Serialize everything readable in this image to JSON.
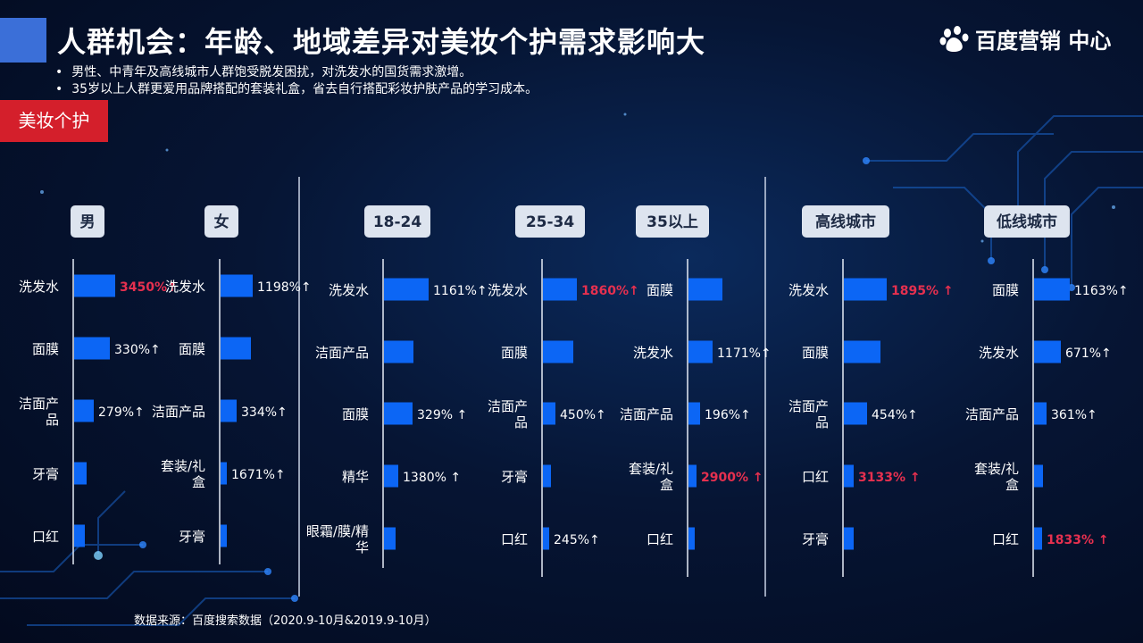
{
  "header": {
    "title": "人群机会：年龄、地域差异对美妆个护需求影响大",
    "logo_text": "百度营销 中心"
  },
  "bullets": [
    "男性、中青年及高线城市人群饱受脱发困扰，对洗发水的国货需求激增。",
    "35岁以上人群更爱用品牌搭配的套装礼盒，省去自行搭配彩妆护肤产品的学习成本。"
  ],
  "category_tag": "美妆个护",
  "source": "数据来源：百度搜索数据（2020.9-10月&2019.9-10月）",
  "colors": {
    "bar": "#0c66f5",
    "highlight": "#e6304f",
    "tag_bg": "#d41f2b",
    "pill_bg": "#dde4ef",
    "pill_text": "#1d2a44"
  },
  "chart_data": [
    {
      "type": "bar",
      "title": "男",
      "categories": [
        "洗发水",
        "面膜",
        "洁面产品",
        "牙膏",
        "口红"
      ],
      "values": [
        3450,
        330,
        279,
        null,
        null
      ],
      "labels": [
        "3450%↑",
        "330%↑",
        "279%↑",
        "",
        ""
      ],
      "highlight": [
        true,
        false,
        false,
        false,
        false
      ],
      "bar_len": [
        46,
        40,
        22,
        14,
        12
      ]
    },
    {
      "type": "bar",
      "title": "女",
      "categories": [
        "洗发水",
        "面膜",
        "洁面产品",
        "套装/礼盒",
        "牙膏"
      ],
      "values": [
        1198,
        null,
        334,
        1671,
        null
      ],
      "labels": [
        "1198%↑",
        "",
        "334%↑",
        "1671%↑",
        ""
      ],
      "highlight": [
        false,
        false,
        false,
        false,
        false
      ],
      "bar_len": [
        36,
        34,
        18,
        7,
        7
      ]
    },
    {
      "type": "bar",
      "title": "18-24",
      "categories": [
        "洗发水",
        "洁面产品",
        "面膜",
        "精华",
        "眼霜/膜/精华"
      ],
      "values": [
        1161,
        null,
        329,
        1380,
        null
      ],
      "labels": [
        "1161%↑",
        "",
        "329% ↑",
        "1380% ↑",
        ""
      ],
      "highlight": [
        false,
        false,
        false,
        false,
        false
      ],
      "bar_len": [
        50,
        33,
        32,
        16,
        13
      ]
    },
    {
      "type": "bar",
      "title": "25-34",
      "categories": [
        "洗发水",
        "面膜",
        "洁面产品",
        "牙膏",
        "口红"
      ],
      "values": [
        1860,
        null,
        450,
        null,
        245
      ],
      "labels": [
        "1860%↑",
        "",
        "450%↑",
        "",
        "245%↑"
      ],
      "highlight": [
        true,
        false,
        false,
        false,
        false
      ],
      "bar_len": [
        38,
        34,
        14,
        9,
        7
      ]
    },
    {
      "type": "bar",
      "title": "35以上",
      "categories": [
        "面膜",
        "洗发水",
        "洁面产品",
        "套装/礼盒",
        "口红"
      ],
      "values": [
        null,
        1171,
        196,
        2900,
        null
      ],
      "labels": [
        "",
        "1171%↑",
        "196%↑",
        "2900% ↑",
        ""
      ],
      "highlight": [
        false,
        false,
        false,
        true,
        false
      ],
      "bar_len": [
        38,
        27,
        13,
        9,
        7
      ]
    },
    {
      "type": "bar",
      "title": "高线城市",
      "categories": [
        "洗发水",
        "面膜",
        "洁面产品",
        "口红",
        "牙膏"
      ],
      "values": [
        1895,
        null,
        454,
        3133,
        null
      ],
      "labels": [
        "1895% ↑",
        "",
        "454%↑",
        "3133% ↑",
        ""
      ],
      "highlight": [
        true,
        false,
        false,
        true,
        false
      ],
      "bar_len": [
        48,
        41,
        26,
        11,
        11
      ]
    },
    {
      "type": "bar",
      "title": "低线城市",
      "categories": [
        "面膜",
        "洗发水",
        "洁面产品",
        "套装/礼盒",
        "口红"
      ],
      "values": [
        1163,
        671,
        361,
        null,
        1833
      ],
      "labels": [
        "1163%↑",
        "671%↑",
        "361%↑",
        "",
        "1833% ↑"
      ],
      "highlight": [
        false,
        false,
        false,
        false,
        true
      ],
      "bar_len": [
        40,
        30,
        14,
        10,
        9
      ]
    }
  ]
}
